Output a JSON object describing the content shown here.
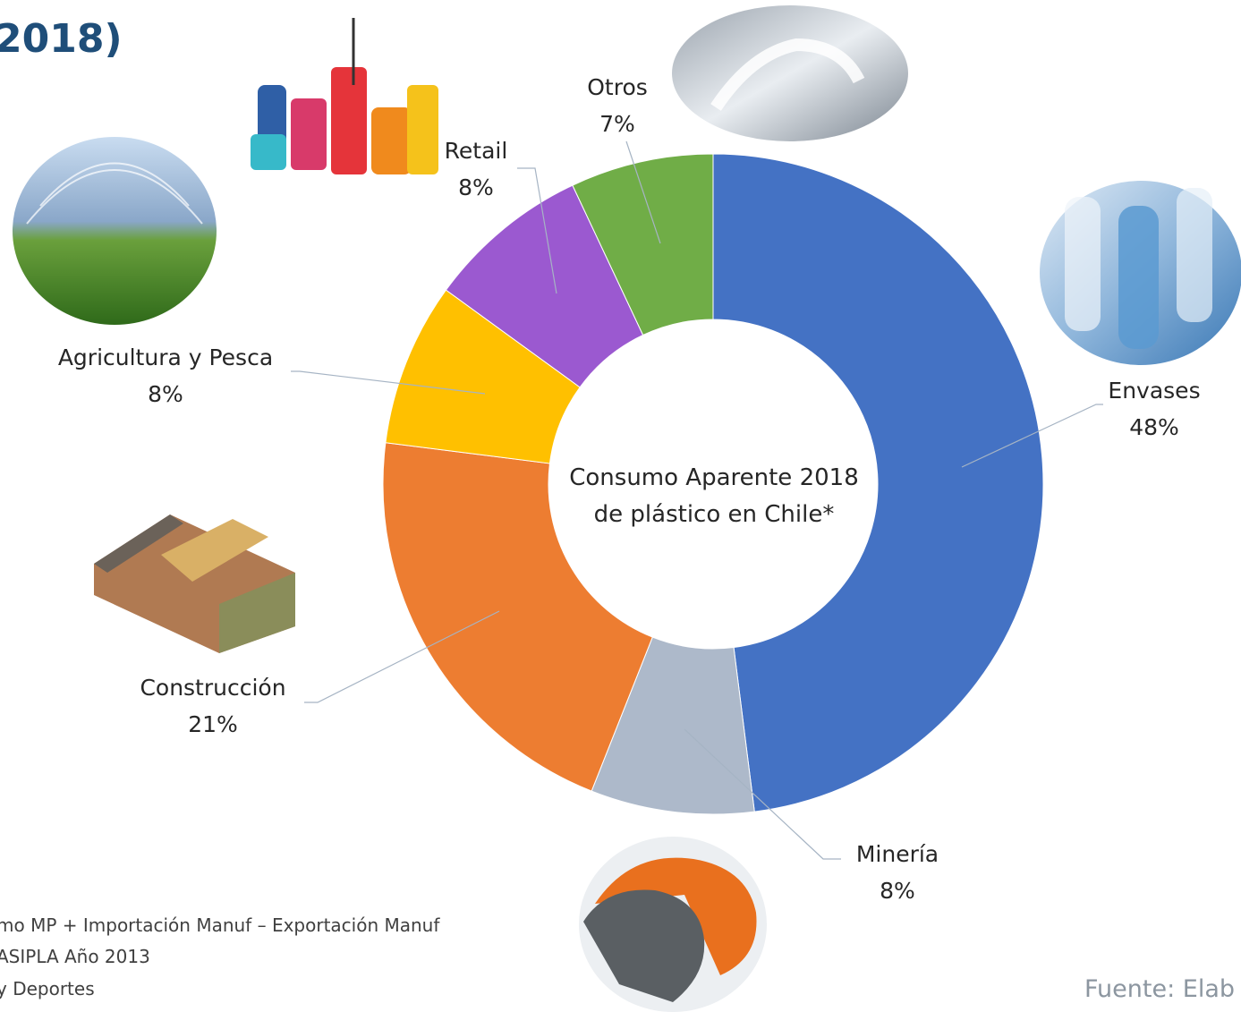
{
  "title": "2018)",
  "chart_data": {
    "type": "pie",
    "donut": true,
    "center_label": [
      "Consumo Aparente 2018",
      "de plástico en Chile*"
    ],
    "categories": [
      "Envases",
      "Minería",
      "Construcción",
      "Agricultura y Pesca",
      "Retail",
      "Otros"
    ],
    "values": [
      48,
      8,
      21,
      8,
      8,
      7
    ],
    "value_labels": [
      "48%",
      "8%",
      "21%",
      "8%",
      "8%",
      "7%"
    ],
    "colors": [
      "#4472c4",
      "#adb9ca",
      "#ed7d31",
      "#ffc000",
      "#9b59d0",
      "#70ad47"
    ]
  },
  "icons": [
    "plastic-bottles-photo",
    "tubing-hose-photo",
    "construction-profiles-photo",
    "greenhouse-photo",
    "household-plastics-photo",
    "medical-plastics-photo"
  ],
  "footnotes": [
    "mo MP + Importación Manuf – Exportación Manuf",
    "ASIPLA Año 2013",
    "y Deportes"
  ],
  "source": "Fuente: Elab"
}
